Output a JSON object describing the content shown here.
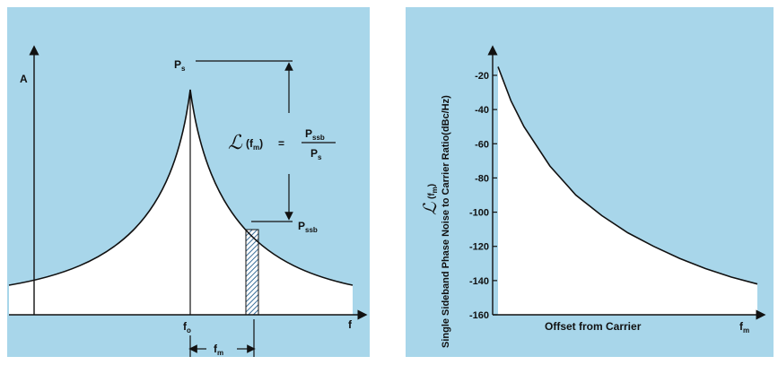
{
  "left_diagram": {
    "y_axis_label": "A",
    "x_axis_label": "f",
    "carrier_freq": {
      "main": "f",
      "sub": "o"
    },
    "offset": {
      "main": "f",
      "sub": "m"
    },
    "ps": {
      "main": "P",
      "sub": "s"
    },
    "pssb": {
      "main": "P",
      "sub": "ssb"
    },
    "formula": {
      "script_l": "ℒ",
      "arg": "(f",
      "arg_sub": "m",
      "arg_close": ")",
      "equals": "=",
      "numerator": {
        "main": "P",
        "sub": "ssb"
      },
      "denominator": {
        "main": "P",
        "sub": "s"
      }
    }
  },
  "right_chart": {
    "chart_data": {
      "type": "line",
      "x_label": "Offset from Carrier",
      "x_end_label": {
        "main": "f",
        "sub": "m"
      },
      "y_label_symbol": {
        "script_l": "ℒ",
        "arg": "(f",
        "arg_sub": "m",
        "arg_close": ")"
      },
      "y_label": "Single Sideband Phase Noise to Carrier Ratio(dBc/Hz)",
      "y_ticks": [
        "-20",
        "-40",
        "-60",
        "-80",
        "-100",
        "-120",
        "-140",
        "-160"
      ],
      "ylim": [
        -160,
        -20
      ],
      "series": [
        {
          "x": [
            0.0,
            0.05,
            0.1,
            0.2,
            0.3,
            0.4,
            0.5,
            0.6,
            0.7,
            0.8,
            0.9,
            1.0
          ],
          "y": [
            -15,
            -35,
            -50,
            -73,
            -90,
            -102,
            -112,
            -120,
            -127,
            -133,
            -138,
            -142
          ]
        }
      ]
    }
  },
  "colors": {
    "panel": "#a8d6ea",
    "fill": "#ffffff",
    "ink": "#111111",
    "hatch": "#3a6f9a"
  }
}
